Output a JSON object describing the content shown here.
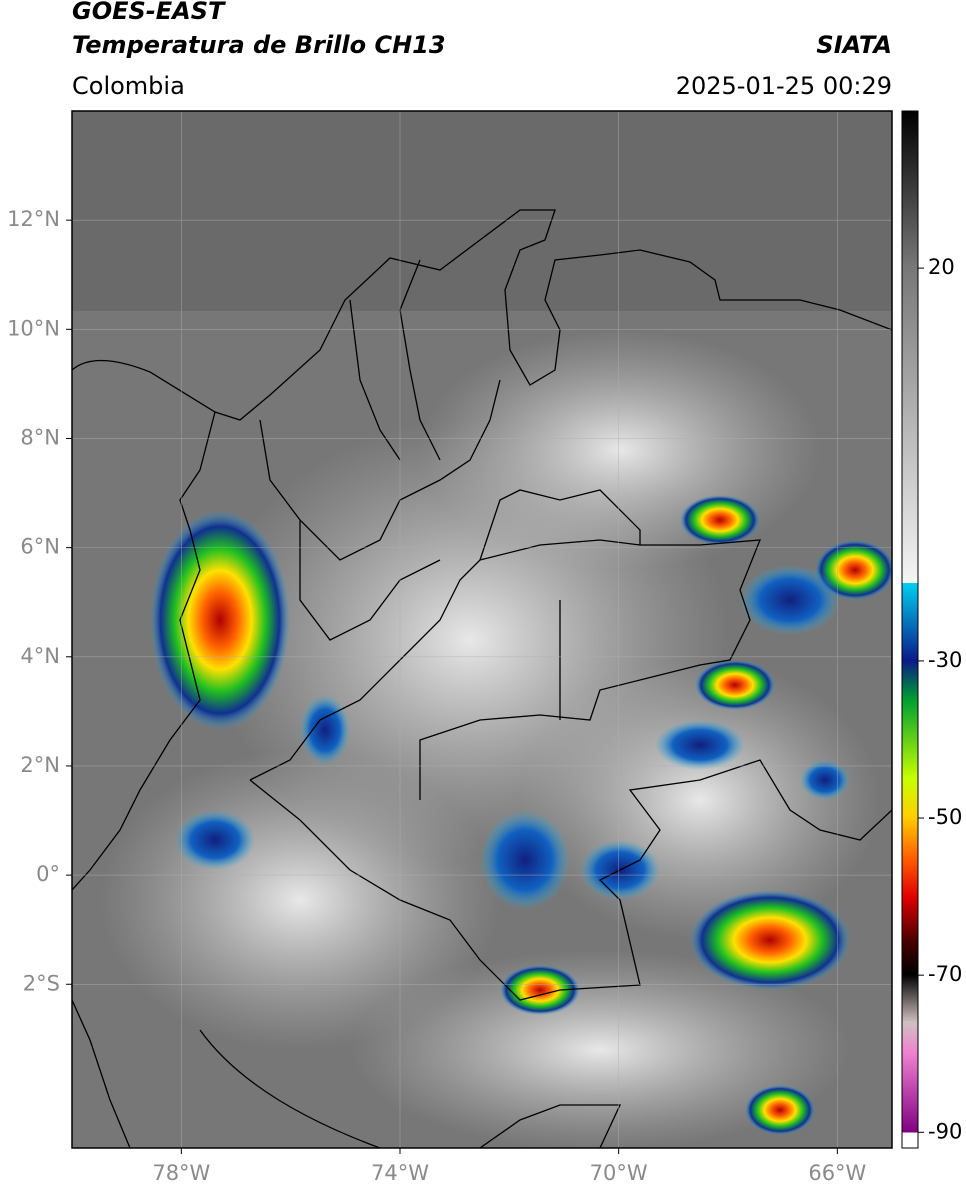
{
  "header": {
    "title": "GOES-EAST",
    "subtitle": "Temperatura de Brillo CH13",
    "source": "SIATA",
    "region": "Colombia",
    "datetime": "2025-01-25 00:29"
  },
  "map": {
    "xlim": [
      -80,
      -65
    ],
    "ylim": [
      -5,
      14
    ],
    "xticks": [
      {
        "value": -78,
        "label": "78°W"
      },
      {
        "value": -74,
        "label": "74°W"
      },
      {
        "value": -70,
        "label": "70°W"
      },
      {
        "value": -66,
        "label": "66°W"
      }
    ],
    "yticks": [
      {
        "value": 12,
        "label": "12°N"
      },
      {
        "value": 10,
        "label": "10°N"
      },
      {
        "value": 8,
        "label": "8°N"
      },
      {
        "value": 6,
        "label": "6°N"
      },
      {
        "value": 4,
        "label": "4°N"
      },
      {
        "value": 2,
        "label": "2°N"
      },
      {
        "value": 0,
        "label": "0°"
      },
      {
        "value": -2,
        "label": "2°S"
      }
    ],
    "grid": true
  },
  "colorbar": {
    "lim": [
      -92,
      40
    ],
    "ticks": [
      20,
      -30,
      -50,
      -70,
      -90
    ]
  }
}
